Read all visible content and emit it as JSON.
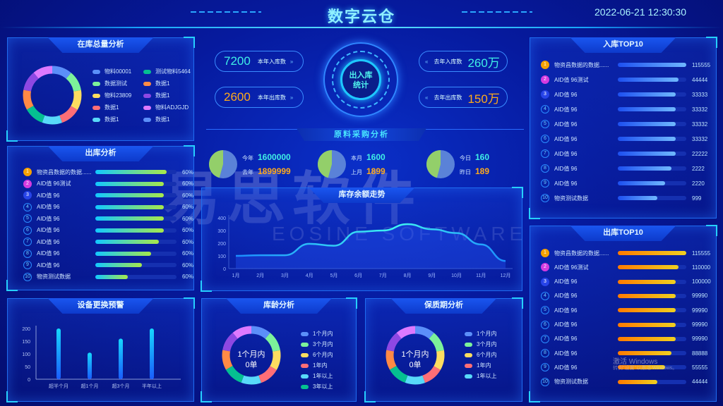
{
  "header": {
    "title": "数字云仓",
    "datetime": "2022-06-21  12:30:30"
  },
  "stock_total": {
    "title": "在库总量分析",
    "items": [
      {
        "label": "物料00001",
        "color": "#5b8ff9",
        "value": 1
      },
      {
        "label": "数据测试",
        "color": "#7cf29a",
        "value": 1
      },
      {
        "label": "物料23809",
        "color": "#fddd60",
        "value": 1
      },
      {
        "label": "数据1",
        "color": "#ff6e76",
        "value": 1
      },
      {
        "label": "数据1",
        "color": "#58d9f9",
        "value": 1
      },
      {
        "label": "测试物料5464",
        "color": "#05c091",
        "value": 1
      },
      {
        "label": "数据1",
        "color": "#ff8a45",
        "value": 1
      },
      {
        "label": "数据1",
        "color": "#8d48e3",
        "value": 1
      },
      {
        "label": "物料ADJGJD",
        "color": "#dd79ff",
        "value": 1
      },
      {
        "label": "数据1",
        "color": "#5b8ff9",
        "value": 0
      }
    ]
  },
  "outbound": {
    "title": "出库分析",
    "rows": [
      {
        "rank": "1",
        "name": "物资昌数据的数据......",
        "value": "60%",
        "fill": 0.88
      },
      {
        "rank": "2",
        "name": "AID值 96测试",
        "value": "60%",
        "fill": 0.84
      },
      {
        "rank": "3",
        "name": "AID值 96",
        "value": "60%",
        "fill": 0.84
      },
      {
        "rank": "4",
        "name": "AID值 96",
        "value": "60%",
        "fill": 0.84
      },
      {
        "rank": "5",
        "name": "AID值 96",
        "value": "60%",
        "fill": 0.84
      },
      {
        "rank": "6",
        "name": "AID值 96",
        "value": "60%",
        "fill": 0.84
      },
      {
        "rank": "7",
        "name": "AID值 96",
        "value": "60%",
        "fill": 0.78
      },
      {
        "rank": "8",
        "name": "AID值 96",
        "value": "60%",
        "fill": 0.69
      },
      {
        "rank": "9",
        "name": "AID值 96",
        "value": "60%",
        "fill": 0.57
      },
      {
        "rank": "10",
        "name": "物资测试数据",
        "value": "60%",
        "fill": 0.4
      }
    ]
  },
  "center": {
    "stats_left": [
      {
        "value": "7200",
        "label": "本年入库数",
        "color": "cyan"
      },
      {
        "value": "2600",
        "label": "本年出库数",
        "color": "orange"
      }
    ],
    "stats_right": [
      {
        "value": "260万",
        "label": "去年入库数",
        "color": "cyan"
      },
      {
        "value": "150万",
        "label": "去年出库数",
        "color": "orange"
      }
    ],
    "hub_label_1": "出入库",
    "hub_label_2": "统计",
    "arrow_right": "»",
    "arrow_left": "«",
    "purchase_title": "原料采购分析",
    "purchase": [
      {
        "l1": "今年",
        "v1": "1600000",
        "l2": "去年",
        "v2": "1899999",
        "values": [
          1600000,
          1899999
        ]
      },
      {
        "l1": "本月",
        "v1": "1600",
        "l2": "上月",
        "v2": "1899",
        "values": [
          1600,
          1899
        ]
      },
      {
        "l1": "今日",
        "v1": "160",
        "l2": "昨日",
        "v2": "189",
        "values": [
          160,
          189
        ]
      }
    ]
  },
  "watermark": {
    "cn": "易思软件",
    "en": "EOSINE SOFTWARE"
  },
  "chart_data": [
    {
      "type": "line",
      "title": "库存余额走势",
      "categories": [
        "1月",
        "2月",
        "3月",
        "4月",
        "5月",
        "6月",
        "7月",
        "8月",
        "9月",
        "10月",
        "11月",
        "12月"
      ],
      "values": [
        100,
        105,
        105,
        195,
        180,
        290,
        300,
        350,
        310,
        280,
        190,
        60
      ],
      "ylim": [
        0,
        400
      ],
      "yticks": [
        0,
        100,
        200,
        300,
        400
      ]
    },
    {
      "type": "bar",
      "title": "设备更换预警",
      "categories": [
        "超半个月",
        "超1个月",
        "超3个月",
        "半年以上"
      ],
      "values": [
        200,
        105,
        160,
        200
      ],
      "ylim": [
        0,
        200
      ],
      "yticks": [
        0,
        50,
        100,
        150,
        200
      ]
    }
  ],
  "age": {
    "title": "库龄分析",
    "center_1": "1个月内",
    "center_2": "0单",
    "items": [
      {
        "label": "1个月内",
        "color": "#5b8ff9"
      },
      {
        "label": "3个月内",
        "color": "#7cf29a"
      },
      {
        "label": "6个月内",
        "color": "#fddd60"
      },
      {
        "label": "1年内",
        "color": "#ff6e76"
      },
      {
        "label": "1年以上",
        "color": "#58d9f9"
      },
      {
        "label": "3年以上",
        "color": "#05c091"
      }
    ]
  },
  "shelf": {
    "title": "保质期分析",
    "center_1": "1个月内",
    "center_2": "0单",
    "items": [
      {
        "label": "1个月内",
        "color": "#5b8ff9"
      },
      {
        "label": "3个月内",
        "color": "#7cf29a"
      },
      {
        "label": "6个月内",
        "color": "#fddd60"
      },
      {
        "label": "1年内",
        "color": "#ff6e76"
      },
      {
        "label": "1年以上",
        "color": "#58d9f9"
      }
    ]
  },
  "donut_colors": [
    "#5b8ff9",
    "#7cf29a",
    "#fddd60",
    "#ff6e76",
    "#58d9f9",
    "#05c091",
    "#ff8a45",
    "#8d48e3",
    "#dd79ff"
  ],
  "in_top": {
    "title": "入库TOP10",
    "rows": [
      {
        "rank": "1",
        "name": "物资昌数据的数据......",
        "value": "115555",
        "fill": 1
      },
      {
        "rank": "2",
        "name": "AID值 96测试",
        "value": "44444",
        "fill": 0.89
      },
      {
        "rank": "3",
        "name": "AID值 96",
        "value": "33333",
        "fill": 0.85
      },
      {
        "rank": "4",
        "name": "AID值 96",
        "value": "33332",
        "fill": 0.85
      },
      {
        "rank": "5",
        "name": "AID值 96",
        "value": "33332",
        "fill": 0.85
      },
      {
        "rank": "6",
        "name": "AID值 96",
        "value": "33332",
        "fill": 0.85
      },
      {
        "rank": "7",
        "name": "AID值 96",
        "value": "22222",
        "fill": 0.85
      },
      {
        "rank": "8",
        "name": "AID值 96",
        "value": "2222",
        "fill": 0.78
      },
      {
        "rank": "9",
        "name": "AID值 96",
        "value": "2220",
        "fill": 0.69
      },
      {
        "rank": "10",
        "name": "物资测试数据",
        "value": "999",
        "fill": 0.58
      }
    ]
  },
  "out_top": {
    "title": "出库TOP10",
    "rows": [
      {
        "rank": "1",
        "name": "物资昌数据的数据......",
        "value": "115555",
        "fill": 1
      },
      {
        "rank": "2",
        "name": "AID值 96测试",
        "value": "110000",
        "fill": 0.89
      },
      {
        "rank": "3",
        "name": "AID值 96",
        "value": "100000",
        "fill": 0.85
      },
      {
        "rank": "4",
        "name": "AID值 96",
        "value": "99990",
        "fill": 0.85
      },
      {
        "rank": "5",
        "name": "AID值 96",
        "value": "99990",
        "fill": 0.85
      },
      {
        "rank": "6",
        "name": "AID值 96",
        "value": "99990",
        "fill": 0.85
      },
      {
        "rank": "7",
        "name": "AID值 96",
        "value": "99990",
        "fill": 0.85
      },
      {
        "rank": "8",
        "name": "AID值 96",
        "value": "88888",
        "fill": 0.78
      },
      {
        "rank": "9",
        "name": "AID值 96",
        "value": "55555",
        "fill": 0.69
      },
      {
        "rank": "10",
        "name": "物资测试数据",
        "value": "44444",
        "fill": 0.58
      }
    ]
  },
  "os_notice": {
    "line1": "激活 Windows",
    "line2": "转到\"设置\"以激活 Windows。"
  }
}
